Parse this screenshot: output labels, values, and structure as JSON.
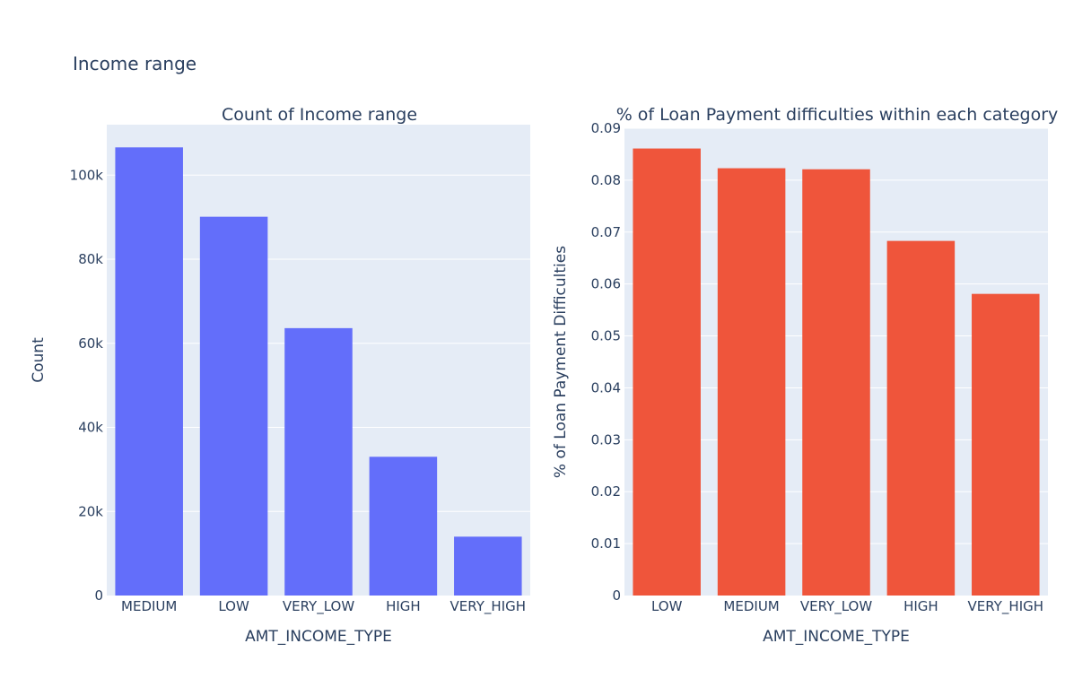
{
  "title": "Income range",
  "colors": {
    "plot_bg": "#e5ecf6",
    "grid": "#ffffff",
    "text": "#2a3f5f",
    "bar_left": "#636efa",
    "bar_right": "#ef553b"
  },
  "chart_data": [
    {
      "type": "bar",
      "title": "Count of Income range",
      "xlabel": "AMT_INCOME_TYPE",
      "ylabel": "Count",
      "categories": [
        "MEDIUM",
        "LOW",
        "VERY_LOW",
        "HIGH",
        "VERY_HIGH"
      ],
      "values": [
        106600,
        90100,
        63600,
        33000,
        14000
      ],
      "ylim": [
        0,
        112000
      ],
      "yticks": [
        0,
        20000,
        40000,
        60000,
        80000,
        100000
      ],
      "ytick_labels": [
        "0",
        "20k",
        "40k",
        "60k",
        "80k",
        "100k"
      ],
      "grid": true,
      "color": "#636efa"
    },
    {
      "type": "bar",
      "title": "% of Loan Payment difficulties within each category",
      "xlabel": "AMT_INCOME_TYPE",
      "ylabel": "% of Loan Payment Difficulties",
      "categories": [
        "LOW",
        "MEDIUM",
        "VERY_LOW",
        "HIGH",
        "VERY_HIGH"
      ],
      "values": [
        0.0861,
        0.0823,
        0.0821,
        0.0683,
        0.0581
      ],
      "ylim": [
        0,
        0.09
      ],
      "yticks": [
        0,
        0.01,
        0.02,
        0.03,
        0.04,
        0.05,
        0.06,
        0.07,
        0.08,
        0.09
      ],
      "ytick_labels": [
        "0",
        "0.01",
        "0.02",
        "0.03",
        "0.04",
        "0.05",
        "0.06",
        "0.07",
        "0.08",
        "0.09"
      ],
      "grid": true,
      "color": "#ef553b"
    }
  ]
}
